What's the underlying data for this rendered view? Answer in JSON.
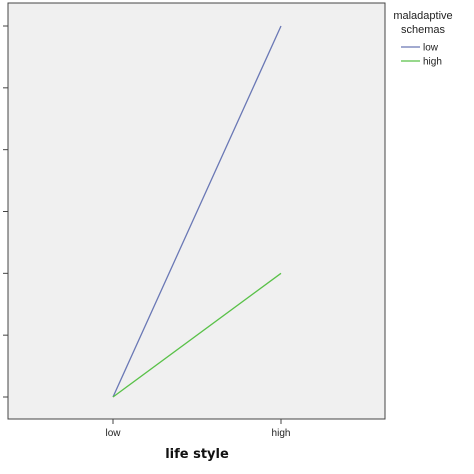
{
  "chart_data": {
    "type": "line",
    "xlabel": "life style",
    "categories": [
      "low",
      "high"
    ],
    "ylim": [
      0,
      6
    ],
    "y_ticks": [
      0,
      1,
      2,
      3,
      4,
      5,
      6
    ],
    "y_tick_labels_visible": false,
    "grid": false,
    "plot_background": "#f0f0f0",
    "legend": {
      "title": "maladaptive schemas",
      "title_lines": [
        "maladaptive",
        "schemas"
      ],
      "placement": "top-right"
    },
    "series": [
      {
        "name": "low",
        "color": "#6a78b5",
        "values": [
          0,
          6
        ]
      },
      {
        "name": "high",
        "color": "#59c148",
        "values": [
          0,
          2
        ]
      }
    ]
  }
}
